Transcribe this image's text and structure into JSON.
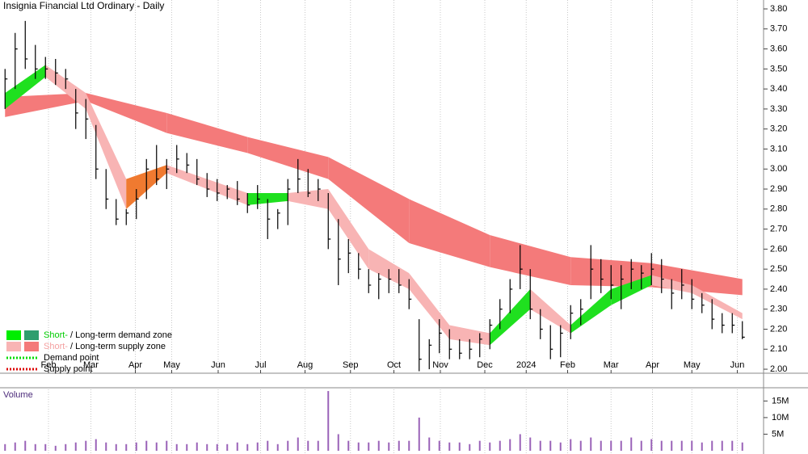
{
  "chart_data": {
    "type": "ohlc",
    "title": "Insignia Financial Ltd Ordinary - Daily",
    "volume_title": "Volume",
    "x": [
      0,
      1,
      2,
      3,
      4,
      5,
      6,
      7,
      8,
      9,
      10,
      11,
      12,
      13,
      14,
      15,
      16,
      17,
      18,
      19,
      20,
      21,
      22,
      23,
      24,
      25,
      26,
      27,
      28,
      29,
      30,
      31,
      32,
      33,
      34,
      35,
      36,
      37,
      38,
      39,
      40,
      41,
      42,
      43,
      44,
      45,
      46,
      47,
      48,
      49,
      50,
      51,
      52,
      53,
      54,
      55,
      56,
      57,
      58,
      59,
      60,
      61,
      62,
      63,
      64,
      65,
      66,
      67,
      68,
      69,
      70,
      71,
      72,
      73
    ],
    "high": [
      3.5,
      3.68,
      3.74,
      3.62,
      3.56,
      3.55,
      3.5,
      3.4,
      3.35,
      3.22,
      3.0,
      2.85,
      2.8,
      2.9,
      3.05,
      3.12,
      3.05,
      3.12,
      3.08,
      3.05,
      2.98,
      2.95,
      2.92,
      2.94,
      2.88,
      2.92,
      2.85,
      2.8,
      2.95,
      3.05,
      3.0,
      2.95,
      2.88,
      2.75,
      2.65,
      2.58,
      2.5,
      2.48,
      2.5,
      2.5,
      2.45,
      2.25,
      2.15,
      2.25,
      2.2,
      2.15,
      2.15,
      2.18,
      2.25,
      2.35,
      2.45,
      2.62,
      2.5,
      2.3,
      2.22,
      2.22,
      2.32,
      2.35,
      2.62,
      2.55,
      2.52,
      2.52,
      2.55,
      2.52,
      2.58,
      2.55,
      2.45,
      2.5,
      2.45,
      2.38,
      2.35,
      2.28,
      2.28,
      2.24
    ],
    "low": [
      3.3,
      3.4,
      3.5,
      3.45,
      3.45,
      3.42,
      3.4,
      3.2,
      3.15,
      2.95,
      2.8,
      2.72,
      2.72,
      2.75,
      2.85,
      2.92,
      2.9,
      2.98,
      2.98,
      2.92,
      2.86,
      2.84,
      2.85,
      2.82,
      2.78,
      2.8,
      2.65,
      2.7,
      2.72,
      2.88,
      2.86,
      2.84,
      2.6,
      2.42,
      2.48,
      2.45,
      2.38,
      2.35,
      2.38,
      2.38,
      2.3,
      1.99,
      2.0,
      2.08,
      2.05,
      2.05,
      2.05,
      2.06,
      2.1,
      2.2,
      2.28,
      2.4,
      2.25,
      2.15,
      2.05,
      2.06,
      2.15,
      2.22,
      2.35,
      2.38,
      2.35,
      2.3,
      2.4,
      2.4,
      2.42,
      2.38,
      2.3,
      2.35,
      2.3,
      2.28,
      2.2,
      2.18,
      2.18,
      2.15
    ],
    "close": [
      3.45,
      3.6,
      3.55,
      3.5,
      3.5,
      3.48,
      3.45,
      3.28,
      3.25,
      3.0,
      2.85,
      2.75,
      2.78,
      2.85,
      3.0,
      2.95,
      3.0,
      3.05,
      3.02,
      2.95,
      2.9,
      2.88,
      2.9,
      2.85,
      2.82,
      2.85,
      2.75,
      2.78,
      2.9,
      2.95,
      2.88,
      2.9,
      2.65,
      2.55,
      2.58,
      2.5,
      2.42,
      2.45,
      2.45,
      2.42,
      2.35,
      2.05,
      2.12,
      2.18,
      2.1,
      2.08,
      2.1,
      2.15,
      2.22,
      2.3,
      2.4,
      2.5,
      2.3,
      2.2,
      2.1,
      2.18,
      2.28,
      2.3,
      2.5,
      2.45,
      2.42,
      2.45,
      2.5,
      2.48,
      2.5,
      2.45,
      2.38,
      2.42,
      2.35,
      2.32,
      2.25,
      2.22,
      2.22,
      2.16
    ],
    "bar_color": "#000000",
    "volume": [
      2000000,
      2500000,
      3000000,
      2000000,
      2000000,
      1500000,
      2000000,
      2500000,
      3000000,
      3500000,
      2500000,
      2000000,
      2000000,
      2500000,
      3000000,
      2500000,
      3000000,
      2000000,
      2000000,
      2500000,
      2000000,
      2000000,
      2000000,
      2500000,
      2000000,
      2500000,
      3000000,
      2000000,
      3000000,
      4000000,
      3000000,
      3000000,
      18000000,
      5000000,
      3000000,
      2500000,
      2500000,
      3000000,
      2500000,
      3000000,
      3000000,
      10000000,
      4000000,
      3000000,
      2500000,
      2500000,
      2000000,
      3000000,
      2500000,
      3000000,
      3500000,
      5000000,
      4000000,
      3000000,
      3000000,
      2500000,
      3500000,
      3000000,
      4000000,
      3000000,
      3000000,
      3000000,
      4000000,
      3000000,
      3500000,
      3000000,
      3000000,
      3000000,
      3000000,
      2500000,
      3000000,
      3000000,
      3000000,
      2500000
    ],
    "volume_color": "#9a62b8",
    "long_band": {
      "x": [
        0,
        8,
        16,
        24,
        32,
        40,
        48,
        56,
        64,
        73
      ],
      "upper": [
        3.36,
        3.38,
        3.28,
        3.16,
        3.06,
        2.85,
        2.67,
        2.56,
        2.53,
        2.45
      ],
      "lower": [
        3.26,
        3.34,
        3.18,
        3.08,
        2.95,
        2.63,
        2.51,
        2.42,
        2.41,
        2.37
      ],
      "color": "#f47a7a"
    },
    "short_band": {
      "x": [
        0,
        4,
        8,
        12,
        16,
        20,
        24,
        28,
        32,
        36,
        40,
        44,
        48,
        52,
        56,
        60,
        64,
        68,
        73
      ],
      "upper": [
        3.38,
        3.52,
        3.38,
        2.95,
        3.02,
        2.95,
        2.88,
        2.88,
        2.9,
        2.6,
        2.48,
        2.22,
        2.18,
        2.4,
        2.22,
        2.4,
        2.47,
        2.42,
        2.28
      ],
      "lower": [
        3.3,
        3.46,
        3.3,
        2.8,
        2.98,
        2.9,
        2.82,
        2.84,
        2.8,
        2.5,
        2.4,
        2.15,
        2.12,
        2.3,
        2.18,
        2.32,
        2.42,
        2.38,
        2.25
      ],
      "colors": [
        "#1fe01f",
        "#f8b4b4",
        "#f8b4b4",
        "#f07a30",
        "#f8b4b4",
        "#f8b4b4",
        "#1fe01f",
        "#f8b4b4",
        "#f8b4b4",
        "#f8b4b4",
        "#f8b4b4",
        "#f8b4b4",
        "#1fe01f",
        "#f8b4b4",
        "#1fe01f",
        "#1fe01f",
        "#f8b4b4",
        "#f8b4b4",
        "#f8b4b4"
      ]
    },
    "xlim": [
      -0.5,
      74.3
    ],
    "xticks": [
      {
        "value": 4.3,
        "label": "Feb"
      },
      {
        "value": 8.5,
        "label": "Mar"
      },
      {
        "value": 12.9,
        "label": "Apr"
      },
      {
        "value": 16.5,
        "label": "May"
      },
      {
        "value": 21.1,
        "label": "Jun"
      },
      {
        "value": 25.3,
        "label": "Jul"
      },
      {
        "value": 29.7,
        "label": "Aug"
      },
      {
        "value": 34.2,
        "label": "Sep"
      },
      {
        "value": 38.5,
        "label": "Oct"
      },
      {
        "value": 43.1,
        "label": "Nov"
      },
      {
        "value": 47.5,
        "label": "Dec"
      },
      {
        "value": 51.6,
        "label": "2024"
      },
      {
        "value": 55.7,
        "label": "Feb"
      },
      {
        "value": 60,
        "label": "Mar"
      },
      {
        "value": 64.1,
        "label": "Apr"
      },
      {
        "value": 68,
        "label": "May"
      },
      {
        "value": 72.5,
        "label": "Jun"
      }
    ],
    "ylim": [
      1.98,
      3.82
    ],
    "yticks": [
      {
        "value": 2,
        "label": "2.00"
      },
      {
        "value": 2.1,
        "label": "2.10"
      },
      {
        "value": 2.2,
        "label": "2.20"
      },
      {
        "value": 2.3,
        "label": "2.30"
      },
      {
        "value": 2.4,
        "label": "2.40"
      },
      {
        "value": 2.5,
        "label": "2.50"
      },
      {
        "value": 2.6,
        "label": "2.60"
      },
      {
        "value": 2.7,
        "label": "2.70"
      },
      {
        "value": 2.8,
        "label": "2.80"
      },
      {
        "value": 2.9,
        "label": "2.90"
      },
      {
        "value": 3,
        "label": "3.00"
      },
      {
        "value": 3.1,
        "label": "3.10"
      },
      {
        "value": 3.2,
        "label": "3.20"
      },
      {
        "value": 3.3,
        "label": "3.30"
      },
      {
        "value": 3.4,
        "label": "3.40"
      },
      {
        "value": 3.5,
        "label": "3.50"
      },
      {
        "value": 3.6,
        "label": "3.60"
      },
      {
        "value": 3.7,
        "label": "3.70"
      },
      {
        "value": 3.8,
        "label": "3.80"
      }
    ],
    "y2lim": [
      0,
      18500000
    ],
    "y2ticks": [
      {
        "value": 5000000,
        "label": "5M"
      },
      {
        "value": 10000000,
        "label": "10M"
      },
      {
        "value": 15000000,
        "label": "15M"
      }
    ],
    "grid": true,
    "legend": [
      {
        "short": "Short-",
        "rest": " / Long-term demand zone",
        "colors": [
          "#00ee00",
          "#2e9e6e"
        ],
        "text_color": "#00cc00"
      },
      {
        "short": "Short-",
        "rest": " / Long-term supply zone",
        "colors": [
          "#f8b4b4",
          "#f47a7a"
        ],
        "text_color": "#f4a0a0"
      },
      {
        "short": "Demand point",
        "dotted": "#00dd00"
      },
      {
        "short": "Supply point",
        "dotted": "#dd0000"
      }
    ]
  }
}
